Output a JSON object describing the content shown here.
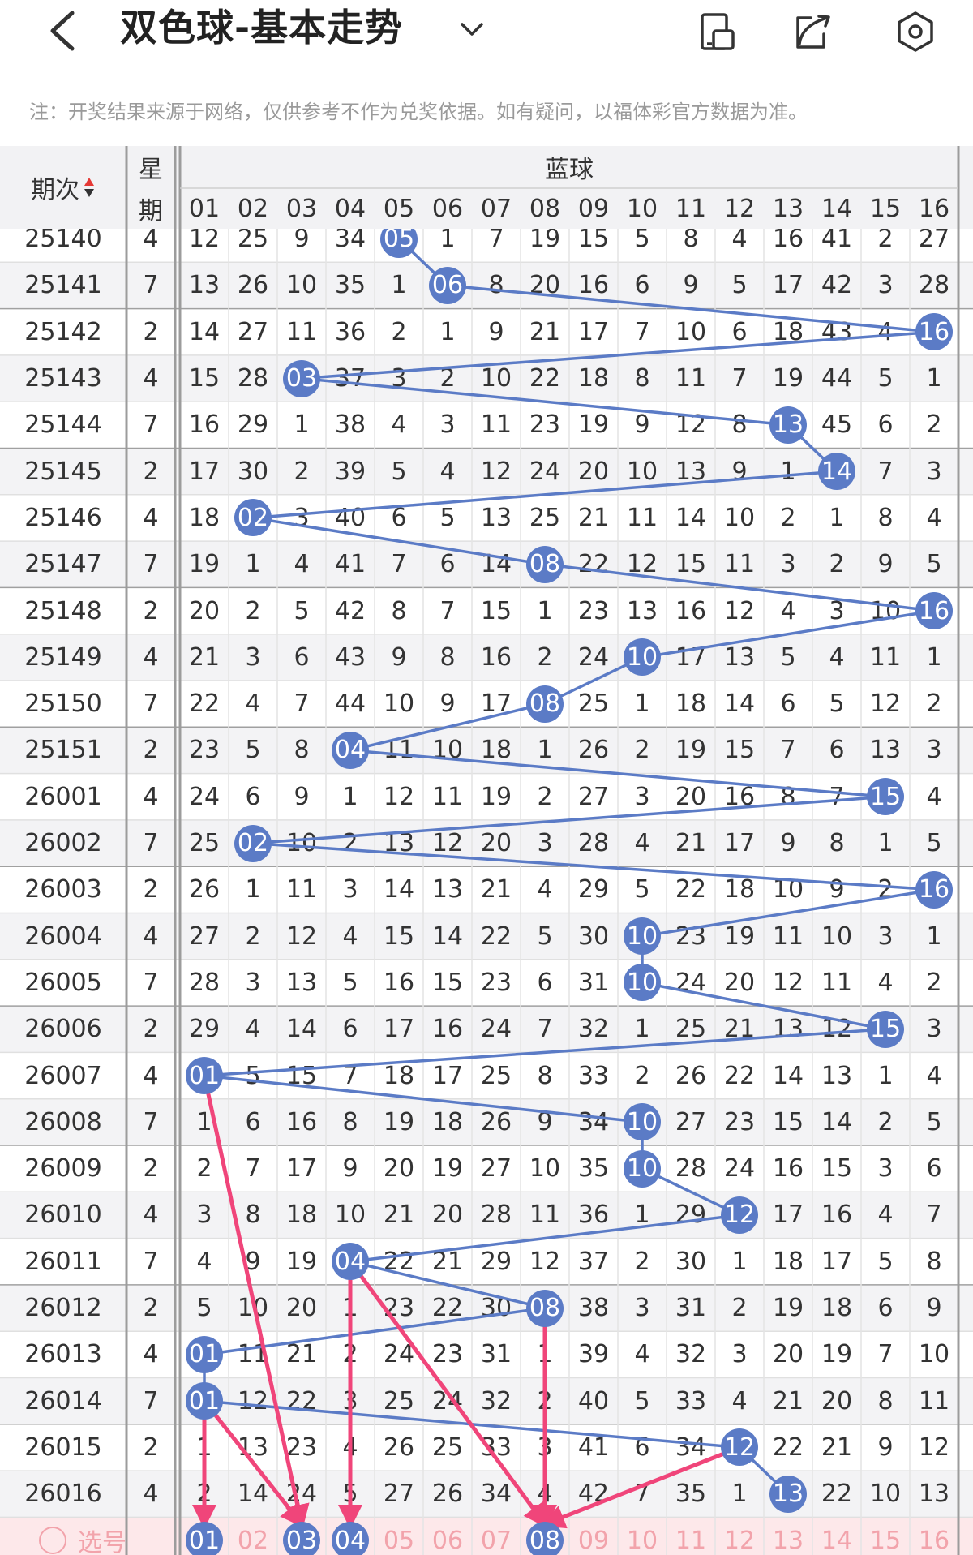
{
  "header": {
    "title": "双色球-基本走势",
    "icons": [
      "back-icon",
      "chevron-down-icon",
      "mobile-icon",
      "share-icon",
      "settings-icon"
    ]
  },
  "notice": "注：开奖结果来源于网络，仅供参考不作为兑奖依据。如有疑问，以福体彩官方数据为准。",
  "table": {
    "col_issue": "期次",
    "col_weekday_top": "星",
    "col_weekday_bottom": "期",
    "group_label": "蓝球",
    "ball_columns": [
      "01",
      "02",
      "03",
      "04",
      "05",
      "06",
      "07",
      "08",
      "09",
      "10",
      "11",
      "12",
      "13",
      "14",
      "15",
      "16"
    ],
    "partial_row": {
      "issue": "25140",
      "weekday": "4",
      "cells": [
        "12",
        "25",
        "9",
        "34",
        "05",
        "1",
        "7",
        "19",
        "15",
        "5",
        "8",
        "4",
        "16",
        "41",
        "2",
        "27"
      ],
      "hit": 5
    },
    "rows": [
      {
        "issue": "25141",
        "weekday": "7",
        "cells": [
          "13",
          "26",
          "10",
          "35",
          "1",
          "06",
          "8",
          "20",
          "16",
          "6",
          "9",
          "5",
          "17",
          "42",
          "3",
          "28"
        ],
        "hit": 6
      },
      {
        "issue": "25142",
        "weekday": "2",
        "cells": [
          "14",
          "27",
          "11",
          "36",
          "2",
          "1",
          "9",
          "21",
          "17",
          "7",
          "10",
          "6",
          "18",
          "43",
          "4",
          "16"
        ],
        "hit": 16
      },
      {
        "issue": "25143",
        "weekday": "4",
        "cells": [
          "15",
          "28",
          "03",
          "37",
          "3",
          "2",
          "10",
          "22",
          "18",
          "8",
          "11",
          "7",
          "19",
          "44",
          "5",
          "1"
        ],
        "hit": 3
      },
      {
        "issue": "25144",
        "weekday": "7",
        "cells": [
          "16",
          "29",
          "1",
          "38",
          "4",
          "3",
          "11",
          "23",
          "19",
          "9",
          "12",
          "8",
          "13",
          "45",
          "6",
          "2"
        ],
        "hit": 13
      },
      {
        "issue": "25145",
        "weekday": "2",
        "cells": [
          "17",
          "30",
          "2",
          "39",
          "5",
          "4",
          "12",
          "24",
          "20",
          "10",
          "13",
          "9",
          "1",
          "14",
          "7",
          "3"
        ],
        "hit": 14
      },
      {
        "issue": "25146",
        "weekday": "4",
        "cells": [
          "18",
          "02",
          "3",
          "40",
          "6",
          "5",
          "13",
          "25",
          "21",
          "11",
          "14",
          "10",
          "2",
          "1",
          "8",
          "4"
        ],
        "hit": 2
      },
      {
        "issue": "25147",
        "weekday": "7",
        "cells": [
          "19",
          "1",
          "4",
          "41",
          "7",
          "6",
          "14",
          "08",
          "22",
          "12",
          "15",
          "11",
          "3",
          "2",
          "9",
          "5"
        ],
        "hit": 8
      },
      {
        "issue": "25148",
        "weekday": "2",
        "cells": [
          "20",
          "2",
          "5",
          "42",
          "8",
          "7",
          "15",
          "1",
          "23",
          "13",
          "16",
          "12",
          "4",
          "3",
          "10",
          "16"
        ],
        "hit": 16
      },
      {
        "issue": "25149",
        "weekday": "4",
        "cells": [
          "21",
          "3",
          "6",
          "43",
          "9",
          "8",
          "16",
          "2",
          "24",
          "10",
          "17",
          "13",
          "5",
          "4",
          "11",
          "1"
        ],
        "hit": 10
      },
      {
        "issue": "25150",
        "weekday": "7",
        "cells": [
          "22",
          "4",
          "7",
          "44",
          "10",
          "9",
          "17",
          "08",
          "25",
          "1",
          "18",
          "14",
          "6",
          "5",
          "12",
          "2"
        ],
        "hit": 8
      },
      {
        "issue": "25151",
        "weekday": "2",
        "cells": [
          "23",
          "5",
          "8",
          "04",
          "11",
          "10",
          "18",
          "1",
          "26",
          "2",
          "19",
          "15",
          "7",
          "6",
          "13",
          "3"
        ],
        "hit": 4
      },
      {
        "issue": "26001",
        "weekday": "4",
        "cells": [
          "24",
          "6",
          "9",
          "1",
          "12",
          "11",
          "19",
          "2",
          "27",
          "3",
          "20",
          "16",
          "8",
          "7",
          "15",
          "4"
        ],
        "hit": 15
      },
      {
        "issue": "26002",
        "weekday": "7",
        "cells": [
          "25",
          "02",
          "10",
          "2",
          "13",
          "12",
          "20",
          "3",
          "28",
          "4",
          "21",
          "17",
          "9",
          "8",
          "1",
          "5"
        ],
        "hit": 2
      },
      {
        "issue": "26003",
        "weekday": "2",
        "cells": [
          "26",
          "1",
          "11",
          "3",
          "14",
          "13",
          "21",
          "4",
          "29",
          "5",
          "22",
          "18",
          "10",
          "9",
          "2",
          "16"
        ],
        "hit": 16
      },
      {
        "issue": "26004",
        "weekday": "4",
        "cells": [
          "27",
          "2",
          "12",
          "4",
          "15",
          "14",
          "22",
          "5",
          "30",
          "10",
          "23",
          "19",
          "11",
          "10",
          "3",
          "1"
        ],
        "hit": 10
      },
      {
        "issue": "26005",
        "weekday": "7",
        "cells": [
          "28",
          "3",
          "13",
          "5",
          "16",
          "15",
          "23",
          "6",
          "31",
          "10",
          "24",
          "20",
          "12",
          "11",
          "4",
          "2"
        ],
        "hit": 10
      },
      {
        "issue": "26006",
        "weekday": "2",
        "cells": [
          "29",
          "4",
          "14",
          "6",
          "17",
          "16",
          "24",
          "7",
          "32",
          "1",
          "25",
          "21",
          "13",
          "12",
          "15",
          "3"
        ],
        "hit": 15
      },
      {
        "issue": "26007",
        "weekday": "4",
        "cells": [
          "01",
          "5",
          "15",
          "7",
          "18",
          "17",
          "25",
          "8",
          "33",
          "2",
          "26",
          "22",
          "14",
          "13",
          "1",
          "4"
        ],
        "hit": 1
      },
      {
        "issue": "26008",
        "weekday": "7",
        "cells": [
          "1",
          "6",
          "16",
          "8",
          "19",
          "18",
          "26",
          "9",
          "34",
          "10",
          "27",
          "23",
          "15",
          "14",
          "2",
          "5"
        ],
        "hit": 10
      },
      {
        "issue": "26009",
        "weekday": "2",
        "cells": [
          "2",
          "7",
          "17",
          "9",
          "20",
          "19",
          "27",
          "10",
          "35",
          "10",
          "28",
          "24",
          "16",
          "15",
          "3",
          "6"
        ],
        "hit": 10
      },
      {
        "issue": "26010",
        "weekday": "4",
        "cells": [
          "3",
          "8",
          "18",
          "10",
          "21",
          "20",
          "28",
          "11",
          "36",
          "1",
          "29",
          "12",
          "17",
          "16",
          "4",
          "7"
        ],
        "hit": 12
      },
      {
        "issue": "26011",
        "weekday": "7",
        "cells": [
          "4",
          "9",
          "19",
          "04",
          "22",
          "21",
          "29",
          "12",
          "37",
          "2",
          "30",
          "1",
          "18",
          "17",
          "5",
          "8"
        ],
        "hit": 4
      },
      {
        "issue": "26012",
        "weekday": "2",
        "cells": [
          "5",
          "10",
          "20",
          "1",
          "23",
          "22",
          "30",
          "08",
          "38",
          "3",
          "31",
          "2",
          "19",
          "18",
          "6",
          "9"
        ],
        "hit": 8
      },
      {
        "issue": "26013",
        "weekday": "4",
        "cells": [
          "01",
          "11",
          "21",
          "2",
          "24",
          "23",
          "31",
          "1",
          "39",
          "4",
          "32",
          "3",
          "20",
          "19",
          "7",
          "10"
        ],
        "hit": 1
      },
      {
        "issue": "26014",
        "weekday": "7",
        "cells": [
          "01",
          "12",
          "22",
          "3",
          "25",
          "24",
          "32",
          "2",
          "40",
          "5",
          "33",
          "4",
          "21",
          "20",
          "8",
          "11"
        ],
        "hit": 1
      },
      {
        "issue": "26015",
        "weekday": "2",
        "cells": [
          "1",
          "13",
          "23",
          "4",
          "26",
          "25",
          "33",
          "3",
          "41",
          "6",
          "34",
          "12",
          "22",
          "21",
          "9",
          "12"
        ],
        "hit": 12
      },
      {
        "issue": "26016",
        "weekday": "4",
        "cells": [
          "2",
          "14",
          "24",
          "5",
          "27",
          "26",
          "34",
          "4",
          "42",
          "7",
          "35",
          "1",
          "13",
          "22",
          "10",
          "13"
        ],
        "hit": 13
      }
    ],
    "select_row": {
      "label": "选号",
      "numbers": [
        "01",
        "02",
        "03",
        "04",
        "05",
        "06",
        "07",
        "08",
        "09",
        "10",
        "11",
        "12",
        "13",
        "14",
        "15",
        "16"
      ],
      "selected": [
        1,
        3,
        4,
        8
      ]
    }
  },
  "colors": {
    "ball": "#5b7bc6",
    "arrow": "#f0457a",
    "select_text": "#f2a3ab",
    "select_bg": "#fde8ea"
  }
}
